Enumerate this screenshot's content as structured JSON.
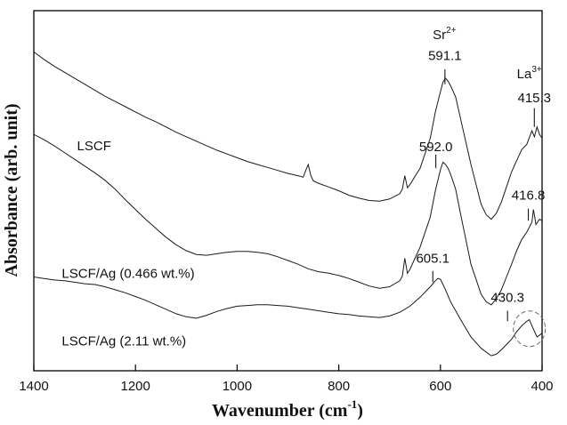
{
  "chart_data": {
    "type": "line",
    "xlabel": "Wavenumber",
    "xunit": "cm",
    "xunit_sup": "-1",
    "ylabel": "Absorbance (arb. unit)",
    "xlim": [
      1400,
      400
    ],
    "x_reversed": true,
    "x_ticks": [
      1400,
      1200,
      1000,
      800,
      600,
      400
    ],
    "y_ticks_shown": false,
    "grid": false,
    "legend": "none (series labelled inline)",
    "series": [
      {
        "name": "LSCF",
        "x": [
          1400,
          1380,
          1360,
          1340,
          1320,
          1300,
          1280,
          1260,
          1240,
          1220,
          1200,
          1180,
          1160,
          1140,
          1120,
          1100,
          1080,
          1060,
          1040,
          1020,
          1000,
          980,
          960,
          940,
          920,
          900,
          880,
          870,
          865,
          860,
          855,
          850,
          840,
          820,
          800,
          780,
          760,
          740,
          720,
          700,
          680,
          675,
          670,
          665,
          660,
          640,
          620,
          610,
          600,
          595,
          590,
          585,
          580,
          570,
          560,
          540,
          520,
          510,
          500,
          490,
          480,
          470,
          460,
          450,
          440,
          430,
          420,
          415,
          410,
          405,
          400
        ],
        "y": [
          3.95,
          3.85,
          3.76,
          3.68,
          3.6,
          3.52,
          3.44,
          3.36,
          3.29,
          3.22,
          3.15,
          3.08,
          3.02,
          2.95,
          2.88,
          2.82,
          2.76,
          2.7,
          2.64,
          2.59,
          2.54,
          2.49,
          2.45,
          2.41,
          2.37,
          2.33,
          2.3,
          2.28,
          2.37,
          2.45,
          2.3,
          2.23,
          2.2,
          2.15,
          2.1,
          2.04,
          2.0,
          1.97,
          1.96,
          1.99,
          2.06,
          2.12,
          2.3,
          2.14,
          2.18,
          2.4,
          2.8,
          3.15,
          3.42,
          3.55,
          3.6,
          3.56,
          3.5,
          3.35,
          3.05,
          2.45,
          1.92,
          1.78,
          1.72,
          1.8,
          1.95,
          2.15,
          2.35,
          2.5,
          2.65,
          2.72,
          2.9,
          2.82,
          2.95,
          2.85,
          2.8
        ]
      },
      {
        "name": "LSCF/Ag (0.466 wt.%)",
        "x": [
          1400,
          1380,
          1360,
          1340,
          1320,
          1300,
          1280,
          1260,
          1240,
          1220,
          1200,
          1180,
          1160,
          1140,
          1120,
          1100,
          1080,
          1060,
          1040,
          1020,
          1000,
          980,
          960,
          940,
          920,
          900,
          880,
          860,
          840,
          820,
          800,
          780,
          760,
          740,
          720,
          700,
          680,
          675,
          670,
          665,
          660,
          640,
          620,
          610,
          600,
          595,
          590,
          585,
          580,
          570,
          560,
          540,
          520,
          510,
          500,
          490,
          480,
          470,
          460,
          450,
          440,
          430,
          420,
          417,
          412,
          405,
          400
        ],
        "y": [
          2.85,
          2.78,
          2.7,
          2.61,
          2.52,
          2.43,
          2.34,
          2.24,
          2.12,
          1.98,
          1.85,
          1.72,
          1.6,
          1.48,
          1.38,
          1.3,
          1.25,
          1.24,
          1.26,
          1.28,
          1.29,
          1.29,
          1.28,
          1.26,
          1.22,
          1.17,
          1.12,
          1.06,
          1.02,
          1.0,
          0.97,
          0.93,
          0.88,
          0.83,
          0.8,
          0.82,
          0.9,
          0.96,
          1.2,
          1.0,
          1.05,
          1.35,
          1.75,
          2.1,
          2.38,
          2.48,
          2.45,
          2.4,
          2.32,
          2.12,
          1.78,
          1.12,
          0.72,
          0.62,
          0.58,
          0.66,
          0.78,
          0.95,
          1.12,
          1.3,
          1.45,
          1.55,
          1.68,
          1.85,
          1.65,
          1.72,
          1.7
        ]
      },
      {
        "name": "LSCF/Ag (2.11 wt.%)",
        "x": [
          1400,
          1380,
          1360,
          1340,
          1320,
          1300,
          1280,
          1260,
          1240,
          1220,
          1200,
          1180,
          1160,
          1140,
          1120,
          1100,
          1080,
          1060,
          1040,
          1020,
          1000,
          980,
          960,
          940,
          920,
          900,
          880,
          860,
          840,
          820,
          800,
          780,
          760,
          740,
          720,
          700,
          680,
          660,
          640,
          620,
          610,
          605,
          600,
          595,
          590,
          580,
          560,
          540,
          520,
          500,
          490,
          480,
          470,
          460,
          450,
          440,
          430,
          425,
          420,
          410,
          400
        ],
        "y": [
          0.95,
          0.93,
          0.91,
          0.9,
          0.88,
          0.86,
          0.85,
          0.82,
          0.78,
          0.74,
          0.69,
          0.64,
          0.58,
          0.52,
          0.46,
          0.42,
          0.4,
          0.44,
          0.49,
          0.53,
          0.56,
          0.57,
          0.58,
          0.58,
          0.57,
          0.56,
          0.54,
          0.52,
          0.5,
          0.48,
          0.46,
          0.45,
          0.43,
          0.42,
          0.41,
          0.43,
          0.48,
          0.56,
          0.68,
          0.82,
          0.9,
          0.93,
          0.92,
          0.85,
          0.78,
          0.62,
          0.38,
          0.15,
          0.0,
          -0.1,
          -0.08,
          -0.02,
          0.05,
          0.12,
          0.22,
          0.3,
          0.36,
          0.38,
          0.3,
          0.15,
          0.2
        ]
      }
    ],
    "annotations": [
      {
        "text": "LSCF",
        "x": 1315,
        "y": 2.64
      },
      {
        "text": "LSCF/Ag (0.466 wt.%)",
        "x": 1345,
        "y": 0.94
      },
      {
        "text": "LSCF/Ag (2.11 wt.%)",
        "x": 1345,
        "y": 0.04
      },
      {
        "text": "Sr",
        "sup": "2+",
        "x": 592,
        "y": 4.12
      },
      {
        "text": "591.1",
        "x": 591.1,
        "y": 3.84,
        "marker_y": [
          3.72,
          3.52
        ]
      },
      {
        "text": "La",
        "sup": "3+",
        "x": 425,
        "y": 3.6
      },
      {
        "text": "415.3",
        "x": 415.3,
        "y": 3.28,
        "marker_y": [
          3.2,
          2.95
        ]
      },
      {
        "text": "592.0",
        "x": 609,
        "y": 2.63,
        "marker_y": [
          2.58,
          2.4
        ]
      },
      {
        "text": "416.8",
        "x": 427,
        "y": 1.98,
        "marker_y": [
          1.86,
          1.7
        ]
      },
      {
        "text": "605.1",
        "x": 615,
        "y": 1.14,
        "marker_y": [
          1.03,
          0.88
        ]
      },
      {
        "text": "430.3",
        "x": 468,
        "y": 0.62,
        "marker_y": [
          0.5,
          0.36
        ]
      }
    ],
    "highlight_circle": {
      "x": 425,
      "y": 0.26,
      "style": "dashed"
    }
  }
}
